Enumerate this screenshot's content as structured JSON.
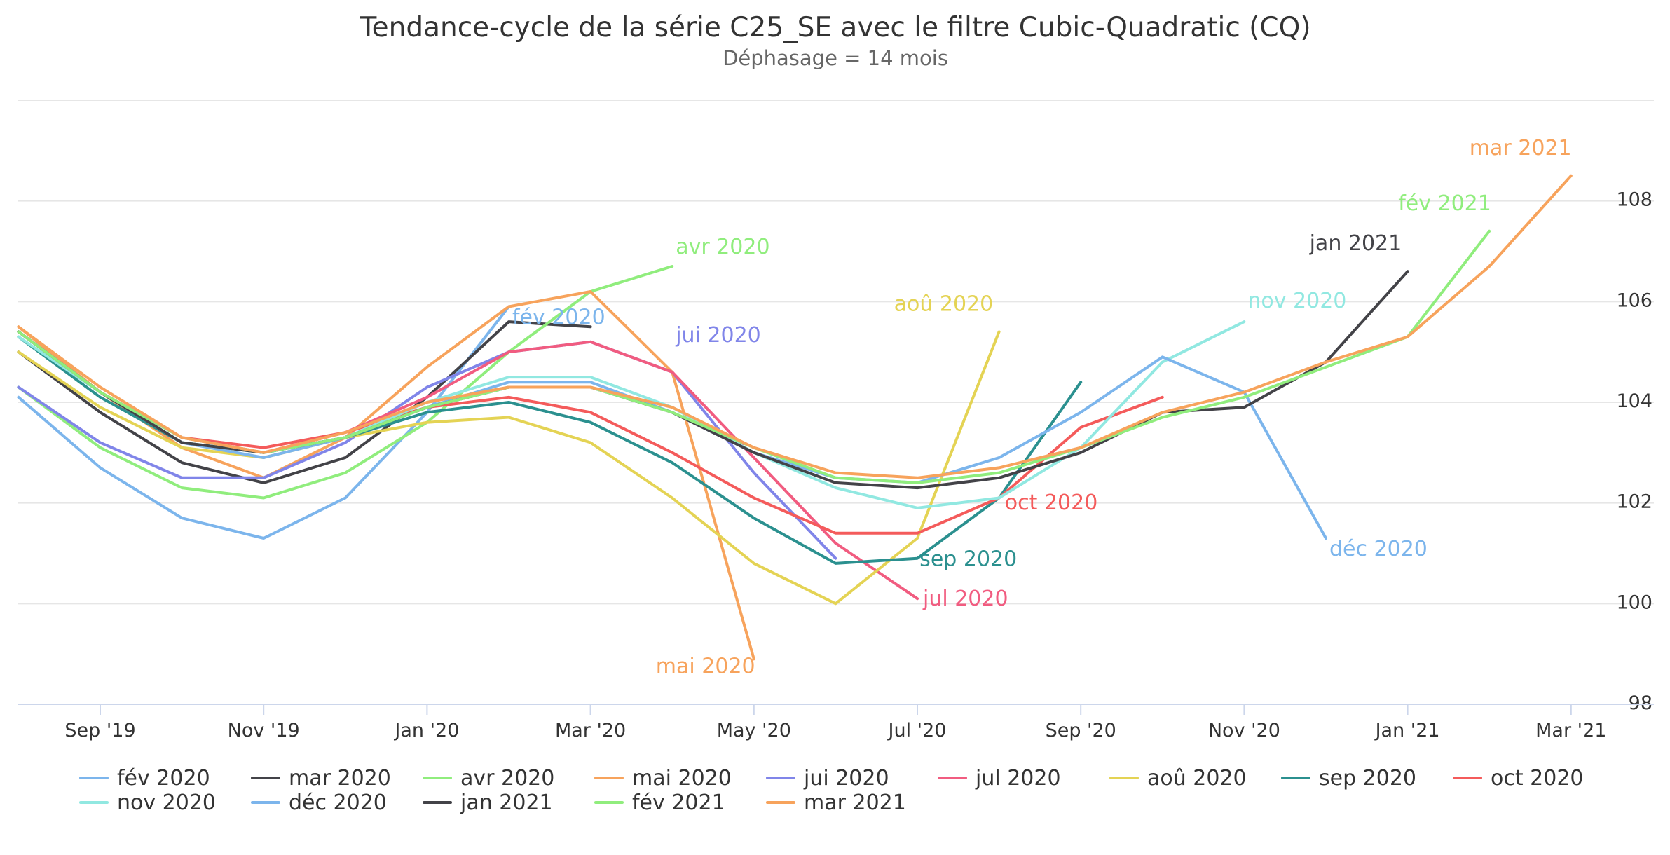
{
  "chart_data": {
    "type": "line",
    "title": "Tendance-cycle de la série C25_SE avec le filtre Cubic-Quadratic (CQ)",
    "subtitle": "Déphasage = 14 mois",
    "xlabel": "",
    "ylabel": "",
    "x_ticks": [
      "Sep '19",
      "Nov '19",
      "Jan '20",
      "Mar '20",
      "May '20",
      "Jul '20",
      "Sep '20",
      "Nov '20",
      "Jan '21",
      "Mar '21"
    ],
    "x_range": [
      "2019-08",
      "2021-03"
    ],
    "y_ticks": [
      "98",
      "100",
      "102",
      "104",
      "106",
      "108"
    ],
    "ylim": [
      98,
      110
    ],
    "grid": "horizontal",
    "legend_position": "bottom",
    "series": [
      {
        "name": "fév 2020",
        "color": "#7cb5ec",
        "label_dx": 5,
        "label_dy": 25,
        "x": [
          "2019-08",
          "2019-09",
          "2019-10",
          "2019-11",
          "2019-12",
          "2020-01",
          "2020-02"
        ],
        "values": [
          104.1,
          102.7,
          101.7,
          101.3,
          102.1,
          103.8,
          105.9
        ]
      },
      {
        "name": "mar 2020",
        "color": "#434348",
        "label_dx": 0,
        "label_dy": 0,
        "show_label": false,
        "x": [
          "2019-08",
          "2019-09",
          "2019-10",
          "2019-11",
          "2019-12",
          "2020-01",
          "2020-02",
          "2020-03"
        ],
        "values": [
          105.0,
          103.8,
          102.8,
          102.4,
          102.9,
          104.1,
          105.6,
          105.5
        ]
      },
      {
        "name": "avr 2020",
        "color": "#90ed7d",
        "label_dx": 5,
        "label_dy": -18,
        "x": [
          "2019-08",
          "2019-09",
          "2019-10",
          "2019-11",
          "2019-12",
          "2020-01",
          "2020-02",
          "2020-03",
          "2020-04"
        ],
        "values": [
          104.3,
          103.1,
          102.3,
          102.1,
          102.6,
          103.6,
          105.0,
          106.2,
          106.7
        ]
      },
      {
        "name": "mai 2020",
        "color": "#f7a35c",
        "label_dx": -140,
        "label_dy": 20,
        "x": [
          "2019-08",
          "2019-09",
          "2019-10",
          "2019-11",
          "2019-12",
          "2020-01",
          "2020-02",
          "2020-03",
          "2020-04",
          "2020-05"
        ],
        "values": [
          105.5,
          104.2,
          103.1,
          102.5,
          103.3,
          104.7,
          105.9,
          106.2,
          104.6,
          98.9
        ]
      },
      {
        "name": "jui 2020",
        "color": "#8085e9",
        "label_dx": 5,
        "label_dy": 0,
        "label_at": "2020-04",
        "label_value": 105.2,
        "x": [
          "2019-08",
          "2019-09",
          "2019-10",
          "2019-11",
          "2019-12",
          "2020-01",
          "2020-02",
          "2020-03",
          "2020-04",
          "2020-05",
          "2020-06"
        ],
        "values": [
          104.3,
          103.2,
          102.5,
          102.5,
          103.2,
          104.3,
          105.0,
          105.2,
          104.6,
          102.6,
          100.9
        ]
      },
      {
        "name": "jul 2020",
        "color": "#f15c80",
        "label_dx": 8,
        "label_dy": 10,
        "x": [
          "2019-08",
          "2019-09",
          "2019-10",
          "2019-11",
          "2019-12",
          "2020-01",
          "2020-02",
          "2020-03",
          "2020-04",
          "2020-05",
          "2020-06",
          "2020-07"
        ],
        "values": [
          105.4,
          104.2,
          103.3,
          103.0,
          103.4,
          104.1,
          105.0,
          105.2,
          104.6,
          102.9,
          101.2,
          100.1
        ]
      },
      {
        "name": "aoû 2020",
        "color": "#e4d354",
        "label_dx": -150,
        "label_dy": -30,
        "x": [
          "2019-08",
          "2019-09",
          "2019-10",
          "2019-11",
          "2019-12",
          "2020-01",
          "2020-02",
          "2020-03",
          "2020-04",
          "2020-05",
          "2020-06",
          "2020-07",
          "2020-08"
        ],
        "values": [
          105.0,
          103.9,
          103.1,
          102.9,
          103.3,
          103.6,
          103.7,
          103.2,
          102.1,
          100.8,
          100.0,
          101.3,
          105.4
        ]
      },
      {
        "name": "sep 2020",
        "color": "#2b908f",
        "label_dx": -230,
        "label_dy": 262,
        "show_label": true,
        "x": [
          "2019-08",
          "2019-09",
          "2019-10",
          "2019-11",
          "2019-12",
          "2020-01",
          "2020-02",
          "2020-03",
          "2020-04",
          "2020-05",
          "2020-06",
          "2020-07",
          "2020-08",
          "2020-09"
        ],
        "values": [
          105.3,
          104.1,
          103.2,
          103.0,
          103.3,
          103.8,
          104.0,
          103.6,
          102.8,
          101.7,
          100.8,
          100.9,
          102.1,
          104.4
        ]
      },
      {
        "name": "oct 2020",
        "color": "#f45b5b",
        "label_dx": -225,
        "label_dy": 160,
        "show_label": true,
        "x": [
          "2019-08",
          "2019-09",
          "2019-10",
          "2019-11",
          "2019-12",
          "2020-01",
          "2020-02",
          "2020-03",
          "2020-04",
          "2020-05",
          "2020-06",
          "2020-07",
          "2020-08",
          "2020-09",
          "2020-10"
        ],
        "values": [
          105.4,
          104.2,
          103.3,
          103.1,
          103.4,
          103.9,
          104.1,
          103.8,
          103.0,
          102.1,
          101.4,
          101.4,
          102.1,
          103.5,
          104.1
        ]
      },
      {
        "name": "nov 2020",
        "color": "#91e8e1",
        "label_dx": 5,
        "label_dy": -20,
        "x": [
          "2019-08",
          "2019-09",
          "2019-10",
          "2019-11",
          "2019-12",
          "2020-01",
          "2020-02",
          "2020-03",
          "2020-04",
          "2020-05",
          "2020-06",
          "2020-07",
          "2020-08",
          "2020-09",
          "2020-10",
          "2020-11"
        ],
        "values": [
          105.3,
          104.2,
          103.2,
          103.0,
          103.3,
          104.0,
          104.5,
          104.5,
          103.9,
          103.0,
          102.3,
          101.9,
          102.1,
          103.1,
          104.8,
          105.6
        ]
      },
      {
        "name": "déc 2020",
        "color": "#7cb5ec",
        "label_dx": 5,
        "label_dy": 25,
        "x": [
          "2019-08",
          "2019-09",
          "2019-10",
          "2019-11",
          "2019-12",
          "2020-01",
          "2020-02",
          "2020-03",
          "2020-04",
          "2020-05",
          "2020-06",
          "2020-07",
          "2020-08",
          "2020-09",
          "2020-10",
          "2020-11",
          "2020-12"
        ],
        "values": [
          105.4,
          104.2,
          103.2,
          102.9,
          103.3,
          103.9,
          104.4,
          104.4,
          103.8,
          103.0,
          102.5,
          102.4,
          102.9,
          103.8,
          104.9,
          104.2,
          101.3
        ]
      },
      {
        "name": "jan 2021",
        "color": "#434348",
        "label_dx": -140,
        "label_dy": -30,
        "x": [
          "2019-08",
          "2019-09",
          "2019-10",
          "2019-11",
          "2019-12",
          "2020-01",
          "2020-02",
          "2020-03",
          "2020-04",
          "2020-05",
          "2020-06",
          "2020-07",
          "2020-08",
          "2020-09",
          "2020-10",
          "2020-11",
          "2020-12",
          "2021-01"
        ],
        "values": [
          105.4,
          104.2,
          103.2,
          103.0,
          103.3,
          103.9,
          104.3,
          104.3,
          103.8,
          103.0,
          102.4,
          102.3,
          102.5,
          103.0,
          103.8,
          103.9,
          104.8,
          106.6
        ]
      },
      {
        "name": "fév 2021",
        "color": "#90ed7d",
        "label_dx": -130,
        "label_dy": -30,
        "x": [
          "2019-08",
          "2019-09",
          "2019-10",
          "2019-11",
          "2019-12",
          "2020-01",
          "2020-02",
          "2020-03",
          "2020-04",
          "2020-05",
          "2020-06",
          "2020-07",
          "2020-08",
          "2020-09",
          "2020-10",
          "2020-11",
          "2020-12",
          "2021-01",
          "2021-02"
        ],
        "values": [
          105.4,
          104.2,
          103.3,
          103.0,
          103.3,
          103.9,
          104.3,
          104.3,
          103.8,
          103.1,
          102.5,
          102.4,
          102.6,
          103.1,
          103.7,
          104.1,
          104.7,
          105.3,
          107.4
        ]
      },
      {
        "name": "mar 2021",
        "color": "#f7a35c",
        "label_dx": -145,
        "label_dy": -30,
        "x": [
          "2019-08",
          "2019-09",
          "2019-10",
          "2019-11",
          "2019-12",
          "2020-01",
          "2020-02",
          "2020-03",
          "2020-04",
          "2020-05",
          "2020-06",
          "2020-07",
          "2020-08",
          "2020-09",
          "2020-10",
          "2020-11",
          "2020-12",
          "2021-01",
          "2021-02",
          "2021-03"
        ],
        "values": [
          105.5,
          104.3,
          103.3,
          103.0,
          103.4,
          104.0,
          104.3,
          104.3,
          103.9,
          103.1,
          102.6,
          102.5,
          102.7,
          103.1,
          103.8,
          104.2,
          104.8,
          105.3,
          106.7,
          108.5
        ]
      }
    ]
  }
}
